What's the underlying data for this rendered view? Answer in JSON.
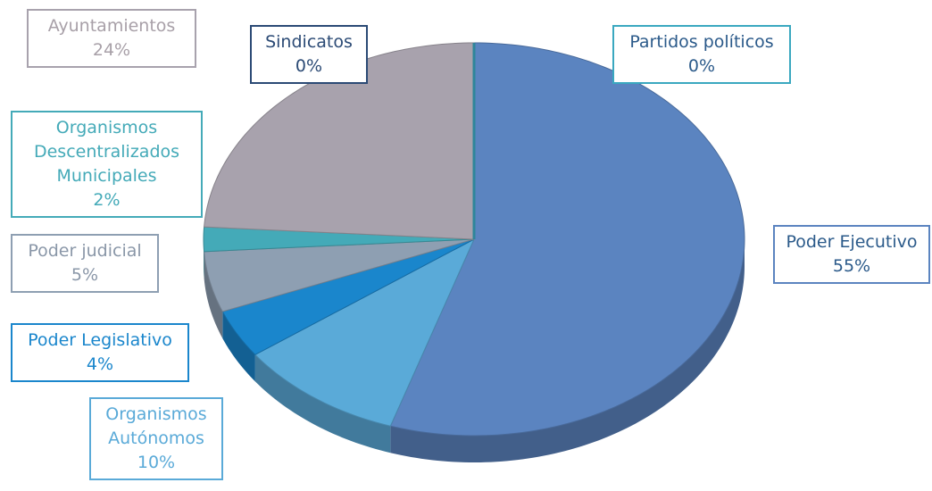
{
  "chart_data": {
    "type": "pie3d",
    "categories": [
      "Poder Ejecutivo",
      "Organismos Autónomos",
      "Poder Legislativo",
      "Poder judicial",
      "Organismos Descentralizados Municipales",
      "Ayuntamientos",
      "Sindicatos",
      "Partidos políticos"
    ],
    "values": [
      55,
      10,
      4,
      5,
      2,
      24,
      0,
      0
    ],
    "value_labels": [
      "55%",
      "10%",
      "4%",
      "5%",
      "2%",
      "24%",
      "0%",
      "0%"
    ],
    "colors": [
      "#5b84c0",
      "#5aaad8",
      "#1a86cc",
      "#8e9fb2",
      "#44aab8",
      "#a8a2ad",
      "#2b4a75",
      "#3aa8c0"
    ]
  }
}
